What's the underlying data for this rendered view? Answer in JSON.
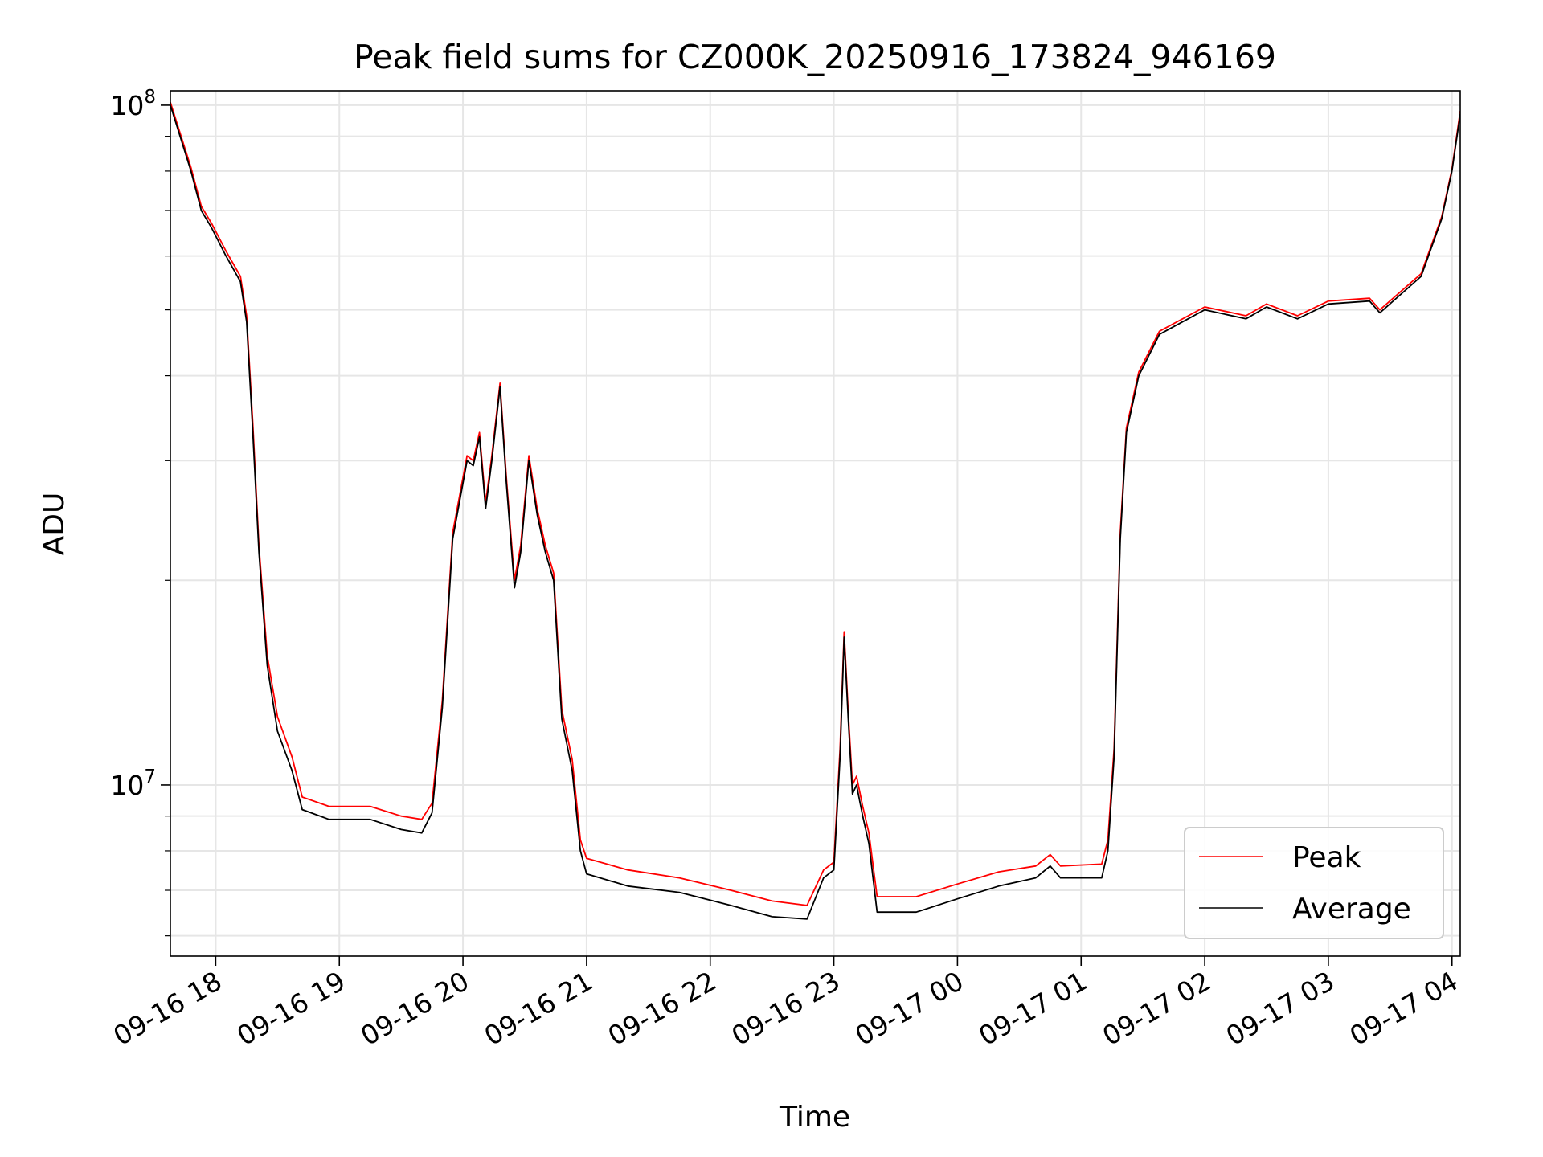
{
  "chart_data": {
    "type": "line",
    "title": "Peak field sums for CZ000K_20250916_173824_946169",
    "xlabel": "Time",
    "ylabel": "ADU",
    "y_scale": "log",
    "ylim": [
      5600000,
      105000000
    ],
    "xlim": [
      "2025-09-16 17:38",
      "2025-09-17 04:04"
    ],
    "grid": true,
    "grid_minor": true,
    "legend_position": "lower right",
    "x_ticks": [
      {
        "t": "2025-09-16 18:00",
        "label": "09-16 18"
      },
      {
        "t": "2025-09-16 19:00",
        "label": "09-16 19"
      },
      {
        "t": "2025-09-16 20:00",
        "label": "09-16 20"
      },
      {
        "t": "2025-09-16 21:00",
        "label": "09-16 21"
      },
      {
        "t": "2025-09-16 22:00",
        "label": "09-16 22"
      },
      {
        "t": "2025-09-16 23:00",
        "label": "09-16 23"
      },
      {
        "t": "2025-09-17 00:00",
        "label": "09-17 00"
      },
      {
        "t": "2025-09-17 01:00",
        "label": "09-17 01"
      },
      {
        "t": "2025-09-17 02:00",
        "label": "09-17 02"
      },
      {
        "t": "2025-09-17 03:00",
        "label": "09-17 03"
      },
      {
        "t": "2025-09-17 04:00",
        "label": "09-17 04"
      }
    ],
    "y_ticks_major": [
      {
        "v": 10000000,
        "base": "10",
        "exp": "7"
      },
      {
        "v": 100000000,
        "base": "10",
        "exp": "8"
      }
    ],
    "y_ticks_minor": [
      6000000,
      7000000,
      8000000,
      9000000,
      20000000,
      30000000,
      40000000,
      50000000,
      60000000,
      70000000,
      80000000,
      90000000
    ],
    "series": [
      {
        "name": "Average",
        "color": "#000000",
        "points": [
          [
            "2025-09-16 17:38",
            100000000
          ],
          [
            "2025-09-16 17:48",
            80000000
          ],
          [
            "2025-09-16 17:53",
            70000000
          ],
          [
            "2025-09-16 17:58",
            66000000
          ],
          [
            "2025-09-16 18:05",
            60000000
          ],
          [
            "2025-09-16 18:12",
            55000000
          ],
          [
            "2025-09-16 18:15",
            48000000
          ],
          [
            "2025-09-16 18:18",
            33000000
          ],
          [
            "2025-09-16 18:21",
            22000000
          ],
          [
            "2025-09-16 18:25",
            15000000
          ],
          [
            "2025-09-16 18:30",
            12000000
          ],
          [
            "2025-09-16 18:37",
            10500000
          ],
          [
            "2025-09-16 18:42",
            9200000
          ],
          [
            "2025-09-16 18:55",
            8900000
          ],
          [
            "2025-09-16 19:15",
            8900000
          ],
          [
            "2025-09-16 19:30",
            8600000
          ],
          [
            "2025-09-16 19:40",
            8500000
          ],
          [
            "2025-09-16 19:45",
            9100000
          ],
          [
            "2025-09-16 19:50",
            13000000
          ],
          [
            "2025-09-16 19:55",
            23000000
          ],
          [
            "2025-09-16 20:02",
            30000000
          ],
          [
            "2025-09-16 20:05",
            29500000
          ],
          [
            "2025-09-16 20:08",
            32500000
          ],
          [
            "2025-09-16 20:11",
            25500000
          ],
          [
            "2025-09-16 20:14",
            30000000
          ],
          [
            "2025-09-16 20:18",
            38500000
          ],
          [
            "2025-09-16 20:21",
            28000000
          ],
          [
            "2025-09-16 20:25",
            19500000
          ],
          [
            "2025-09-16 20:28",
            22000000
          ],
          [
            "2025-09-16 20:32",
            30000000
          ],
          [
            "2025-09-16 20:36",
            25000000
          ],
          [
            "2025-09-16 20:40",
            22000000
          ],
          [
            "2025-09-16 20:44",
            20000000
          ],
          [
            "2025-09-16 20:48",
            12500000
          ],
          [
            "2025-09-16 20:53",
            10500000
          ],
          [
            "2025-09-16 20:57",
            8000000
          ],
          [
            "2025-09-16 21:00",
            7400000
          ],
          [
            "2025-09-16 21:20",
            7100000
          ],
          [
            "2025-09-16 21:45",
            6950000
          ],
          [
            "2025-09-16 22:10",
            6650000
          ],
          [
            "2025-09-16 22:30",
            6400000
          ],
          [
            "2025-09-16 22:47",
            6350000
          ],
          [
            "2025-09-16 22:55",
            7300000
          ],
          [
            "2025-09-16 23:00",
            7500000
          ],
          [
            "2025-09-16 23:03",
            11000000
          ],
          [
            "2025-09-16 23:05",
            16500000
          ],
          [
            "2025-09-16 23:07",
            12500000
          ],
          [
            "2025-09-16 23:09",
            9700000
          ],
          [
            "2025-09-16 23:11",
            10000000
          ],
          [
            "2025-09-16 23:14",
            9000000
          ],
          [
            "2025-09-16 23:17",
            8200000
          ],
          [
            "2025-09-16 23:21",
            6500000
          ],
          [
            "2025-09-16 23:40",
            6500000
          ],
          [
            "2025-09-17 00:00",
            6800000
          ],
          [
            "2025-09-17 00:20",
            7100000
          ],
          [
            "2025-09-17 00:38",
            7300000
          ],
          [
            "2025-09-17 00:45",
            7600000
          ],
          [
            "2025-09-17 00:50",
            7300000
          ],
          [
            "2025-09-17 01:10",
            7300000
          ],
          [
            "2025-09-17 01:13",
            8000000
          ],
          [
            "2025-09-17 01:16",
            11000000
          ],
          [
            "2025-09-17 01:19",
            23000000
          ],
          [
            "2025-09-17 01:22",
            33000000
          ],
          [
            "2025-09-17 01:28",
            40000000
          ],
          [
            "2025-09-17 01:38",
            46000000
          ],
          [
            "2025-09-17 02:00",
            50000000
          ],
          [
            "2025-09-17 02:20",
            48500000
          ],
          [
            "2025-09-17 02:30",
            50500000
          ],
          [
            "2025-09-17 02:45",
            48500000
          ],
          [
            "2025-09-17 03:00",
            51000000
          ],
          [
            "2025-09-17 03:20",
            51500000
          ],
          [
            "2025-09-17 03:25",
            49500000
          ],
          [
            "2025-09-17 03:45",
            56000000
          ],
          [
            "2025-09-17 03:55",
            68000000
          ],
          [
            "2025-09-17 04:00",
            80000000
          ],
          [
            "2025-09-17 04:04",
            97000000
          ]
        ]
      },
      {
        "name": "Peak",
        "color": "#ff0000",
        "points": [
          [
            "2025-09-16 17:38",
            101000000
          ],
          [
            "2025-09-16 17:48",
            81000000
          ],
          [
            "2025-09-16 17:53",
            71000000
          ],
          [
            "2025-09-16 17:58",
            67000000
          ],
          [
            "2025-09-16 18:05",
            61000000
          ],
          [
            "2025-09-16 18:12",
            56000000
          ],
          [
            "2025-09-16 18:15",
            49000000
          ],
          [
            "2025-09-16 18:18",
            34000000
          ],
          [
            "2025-09-16 18:21",
            22500000
          ],
          [
            "2025-09-16 18:25",
            15500000
          ],
          [
            "2025-09-16 18:30",
            12600000
          ],
          [
            "2025-09-16 18:37",
            11000000
          ],
          [
            "2025-09-16 18:42",
            9600000
          ],
          [
            "2025-09-16 18:55",
            9300000
          ],
          [
            "2025-09-16 19:15",
            9300000
          ],
          [
            "2025-09-16 19:30",
            9000000
          ],
          [
            "2025-09-16 19:40",
            8900000
          ],
          [
            "2025-09-16 19:45",
            9400000
          ],
          [
            "2025-09-16 19:50",
            13300000
          ],
          [
            "2025-09-16 19:55",
            23500000
          ],
          [
            "2025-09-16 20:02",
            30500000
          ],
          [
            "2025-09-16 20:05",
            30000000
          ],
          [
            "2025-09-16 20:08",
            33000000
          ],
          [
            "2025-09-16 20:11",
            26000000
          ],
          [
            "2025-09-16 20:14",
            30500000
          ],
          [
            "2025-09-16 20:18",
            39000000
          ],
          [
            "2025-09-16 20:21",
            28500000
          ],
          [
            "2025-09-16 20:25",
            20000000
          ],
          [
            "2025-09-16 20:28",
            22500000
          ],
          [
            "2025-09-16 20:32",
            30500000
          ],
          [
            "2025-09-16 20:36",
            25500000
          ],
          [
            "2025-09-16 20:40",
            22500000
          ],
          [
            "2025-09-16 20:44",
            20500000
          ],
          [
            "2025-09-16 20:48",
            12900000
          ],
          [
            "2025-09-16 20:53",
            10900000
          ],
          [
            "2025-09-16 20:57",
            8300000
          ],
          [
            "2025-09-16 21:00",
            7800000
          ],
          [
            "2025-09-16 21:20",
            7500000
          ],
          [
            "2025-09-16 21:45",
            7300000
          ],
          [
            "2025-09-16 22:10",
            7000000
          ],
          [
            "2025-09-16 22:30",
            6750000
          ],
          [
            "2025-09-16 22:47",
            6650000
          ],
          [
            "2025-09-16 22:55",
            7500000
          ],
          [
            "2025-09-16 23:00",
            7700000
          ],
          [
            "2025-09-16 23:03",
            11300000
          ],
          [
            "2025-09-16 23:05",
            16800000
          ],
          [
            "2025-09-16 23:07",
            12800000
          ],
          [
            "2025-09-16 23:09",
            10000000
          ],
          [
            "2025-09-16 23:11",
            10300000
          ],
          [
            "2025-09-16 23:14",
            9300000
          ],
          [
            "2025-09-16 23:17",
            8500000
          ],
          [
            "2025-09-16 23:21",
            6850000
          ],
          [
            "2025-09-16 23:40",
            6850000
          ],
          [
            "2025-09-17 00:00",
            7150000
          ],
          [
            "2025-09-17 00:20",
            7450000
          ],
          [
            "2025-09-17 00:38",
            7600000
          ],
          [
            "2025-09-17 00:45",
            7900000
          ],
          [
            "2025-09-17 00:50",
            7600000
          ],
          [
            "2025-09-17 01:10",
            7650000
          ],
          [
            "2025-09-17 01:13",
            8300000
          ],
          [
            "2025-09-17 01:16",
            11300000
          ],
          [
            "2025-09-17 01:19",
            23500000
          ],
          [
            "2025-09-17 01:22",
            33500000
          ],
          [
            "2025-09-17 01:28",
            40500000
          ],
          [
            "2025-09-17 01:38",
            46500000
          ],
          [
            "2025-09-17 02:00",
            50500000
          ],
          [
            "2025-09-17 02:20",
            49000000
          ],
          [
            "2025-09-17 02:30",
            51000000
          ],
          [
            "2025-09-17 02:45",
            49000000
          ],
          [
            "2025-09-17 03:00",
            51500000
          ],
          [
            "2025-09-17 03:20",
            52000000
          ],
          [
            "2025-09-17 03:25",
            50000000
          ],
          [
            "2025-09-17 03:45",
            56500000
          ],
          [
            "2025-09-17 03:55",
            68500000
          ],
          [
            "2025-09-17 04:00",
            80500000
          ],
          [
            "2025-09-17 04:04",
            98000000
          ]
        ]
      }
    ],
    "legend": [
      {
        "name": "Peak",
        "color": "#ff0000"
      },
      {
        "name": "Average",
        "color": "#000000"
      }
    ]
  }
}
